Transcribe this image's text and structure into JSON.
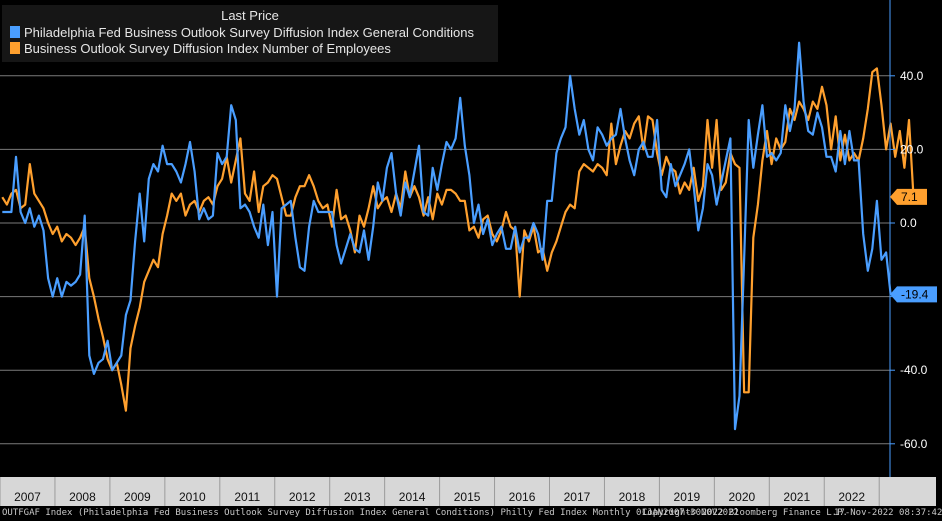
{
  "legend": {
    "title": "Last Price",
    "items": [
      {
        "label": "Philadelphia Fed Business Outlook Survey Diffusion Index General Conditions",
        "color": "#4a9eff"
      },
      {
        "label": "Business Outlook Survey Diffusion Index Number of Employees",
        "color": "#ffa02e"
      }
    ]
  },
  "footer": {
    "left": "OUTFGAF Index (Philadelphia Fed Business Outlook Survey Diffusion Index General Conditions) Philly Fed Index  Monthly 01JAN2007-30NOV2022",
    "copyright": "Copyright© 2022 Bloomberg Finance L.P.",
    "timestamp": "17-Nov-2022 08:37:42"
  },
  "chart_data": {
    "type": "line",
    "title": "Last Price",
    "x_start": "2007-01",
    "x_end": "2022-11",
    "frequency": "monthly",
    "ylim": [
      -63,
      60
    ],
    "yticks": [
      -60,
      -40,
      -20,
      0,
      20,
      40
    ],
    "ytick_labels": [
      "-60.0",
      "-40.0",
      "-20.0",
      "0.0",
      "20.0",
      "40.0"
    ],
    "year_labels": [
      "2007",
      "2008",
      "2009",
      "2010",
      "2011",
      "2012",
      "2013",
      "2014",
      "2015",
      "2016",
      "2017",
      "2018",
      "2019",
      "2020",
      "2021",
      "2022"
    ],
    "grid": true,
    "series": [
      {
        "name": "Philadelphia Fed Business Outlook Survey Diffusion Index General Conditions",
        "color": "#4a9eff",
        "last_label": "-19.4",
        "values": [
          3,
          3,
          3,
          18,
          3,
          0,
          4,
          -1,
          2,
          -2,
          -15,
          -20,
          -15,
          -20,
          -16,
          -17,
          -16,
          -14,
          2,
          -36,
          -41,
          -38,
          -37,
          -32,
          -40,
          -38,
          -36,
          -25,
          -21,
          -5,
          8,
          -5,
          12,
          16,
          14,
          21,
          16,
          16,
          14,
          11,
          16,
          22,
          14,
          1,
          4,
          1,
          2,
          19,
          16,
          18,
          32,
          28,
          4,
          5,
          3,
          -1,
          -4,
          5,
          -6,
          3,
          -20,
          4,
          5,
          6,
          -4,
          -12,
          -13,
          -1,
          6,
          3,
          3,
          3,
          3,
          -6,
          -11,
          -7,
          -3,
          -7,
          -8,
          -2,
          -10,
          -1,
          11,
          6,
          15,
          19,
          8,
          2,
          11,
          7,
          14,
          21,
          3,
          2,
          15,
          9,
          16,
          22,
          20,
          23,
          34,
          21,
          13,
          0,
          5,
          -3,
          1,
          -6,
          -3,
          -1,
          -7,
          -7,
          -1,
          -8,
          -4,
          -4,
          0,
          -3,
          -10,
          6,
          6,
          19,
          23,
          26,
          40,
          31,
          24,
          28,
          20,
          17,
          26,
          24,
          21,
          23,
          24,
          31,
          23,
          17,
          13,
          20,
          22,
          18,
          18,
          28,
          9,
          7,
          16,
          10,
          13,
          16,
          20,
          10,
          -2,
          4,
          16,
          13,
          5,
          11,
          17,
          23,
          -56,
          -47,
          -10,
          28,
          15,
          24,
          32,
          18,
          19,
          17,
          19,
          32,
          25,
          31,
          49,
          33,
          25,
          24,
          30,
          26,
          18,
          18,
          14,
          25,
          16,
          25,
          17,
          17,
          -3,
          -13,
          -7,
          6,
          -10,
          -8,
          -19.4
        ]
      },
      {
        "name": "Business Outlook Survey Diffusion Index Number of Employees",
        "color": "#ffa02e",
        "last_label": "7.1",
        "values": [
          7,
          5,
          8,
          9,
          4,
          5,
          16,
          8,
          6,
          4,
          0,
          -3,
          -1,
          -5,
          -3,
          -4,
          -6,
          -4,
          -1,
          -15,
          -20,
          -26,
          -31,
          -37,
          -40,
          -38,
          -44,
          -51,
          -34,
          -28,
          -23,
          -16,
          -13,
          -10,
          -12,
          -3,
          2,
          8,
          6,
          8,
          2,
          5,
          6,
          3,
          6,
          7,
          5,
          10,
          12,
          18,
          11,
          17,
          23,
          8,
          6,
          14,
          3,
          10,
          11,
          13,
          12,
          7,
          2,
          2,
          7,
          10,
          10,
          13,
          10,
          6,
          4,
          5,
          -1,
          9,
          1,
          2,
          -2,
          -8,
          2,
          -1,
          4,
          10,
          4,
          6,
          7,
          3,
          8,
          4,
          14,
          7,
          10,
          7,
          2,
          7,
          1,
          8,
          5,
          9,
          9,
          8,
          6,
          6,
          -2,
          -1,
          -4,
          1,
          2,
          -3,
          -5,
          -2,
          3,
          -1,
          -2,
          -20,
          -2,
          -5,
          -1,
          -8,
          -7,
          -13,
          -8,
          -5,
          -1,
          3,
          5,
          4,
          14,
          16,
          15,
          14,
          16,
          15,
          13,
          27,
          16,
          21,
          25,
          23,
          27,
          29,
          20,
          29,
          28,
          19,
          13,
          18,
          15,
          14,
          8,
          11,
          9,
          15,
          6,
          10,
          28,
          15,
          28,
          9,
          11,
          19,
          16,
          15,
          -46,
          -46,
          -4,
          5,
          17,
          25,
          16,
          23,
          20,
          22,
          31,
          28,
          33,
          31,
          28,
          33,
          31,
          37,
          32,
          20,
          29,
          17,
          24,
          17,
          19,
          17,
          23,
          31,
          41,
          42,
          32,
          20,
          27,
          18,
          25,
          15,
          28,
          7.1
        ]
      }
    ]
  }
}
